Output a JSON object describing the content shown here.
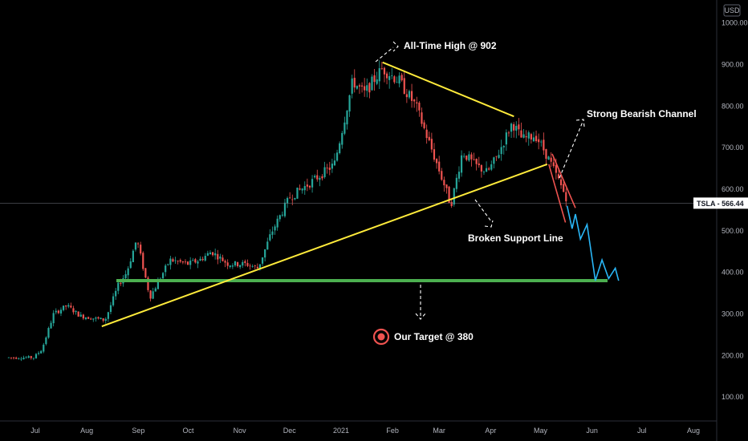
{
  "chart_data": {
    "type": "candlestick",
    "ticker": "TSLA",
    "currency_label": "USD",
    "last_price_label": "566.44",
    "last_price": 566.44,
    "y_ticks": [
      "100.00",
      "200.00",
      "300.00",
      "400.00",
      "500.00",
      "600.00",
      "700.00",
      "800.00",
      "900.00",
      "1000.00"
    ],
    "x_ticks": [
      "Jul",
      "Aug",
      "Sep",
      "Oct",
      "Nov",
      "Dec",
      "2021",
      "Feb",
      "Mar",
      "Apr",
      "May",
      "Jun",
      "Jul",
      "Aug"
    ],
    "colors": {
      "up": "#26a69a",
      "down": "#ef5350",
      "support": "#4caf50",
      "trend": "#ffeb3b",
      "channel": "#ef5350",
      "projection": "#29b6f6"
    },
    "price_path": [
      [
        "2020-06-15",
        195
      ],
      [
        "2020-06-30",
        195
      ],
      [
        "2020-07-05",
        215
      ],
      [
        "2020-07-12",
        300
      ],
      [
        "2020-07-20",
        320
      ],
      [
        "2020-07-28",
        295
      ],
      [
        "2020-08-12",
        285
      ],
      [
        "2020-08-20",
        370
      ],
      [
        "2020-08-25",
        400
      ],
      [
        "2020-08-31",
        480
      ],
      [
        "2020-09-08",
        340
      ],
      [
        "2020-09-20",
        430
      ],
      [
        "2020-10-01",
        420
      ],
      [
        "2020-10-08",
        430
      ],
      [
        "2020-10-15",
        450
      ],
      [
        "2020-10-25",
        420
      ],
      [
        "2020-11-05",
        420
      ],
      [
        "2020-11-12",
        410
      ],
      [
        "2020-11-20",
        495
      ],
      [
        "2020-12-01",
        580
      ],
      [
        "2020-12-15",
        620
      ],
      [
        "2020-12-28",
        660
      ],
      [
        "2021-01-08",
        860
      ],
      [
        "2021-01-15",
        830
      ],
      [
        "2021-01-22",
        870
      ],
      [
        "2021-01-26",
        890
      ],
      [
        "2021-02-05",
        860
      ],
      [
        "2021-02-15",
        800
      ],
      [
        "2021-02-25",
        690
      ],
      [
        "2021-03-05",
        600
      ],
      [
        "2021-03-08",
        560
      ],
      [
        "2021-03-15",
        690
      ],
      [
        "2021-03-22",
        660
      ],
      [
        "2021-03-30",
        640
      ],
      [
        "2021-04-05",
        680
      ],
      [
        "2021-04-14",
        760
      ],
      [
        "2021-04-20",
        720
      ],
      [
        "2021-04-28",
        730
      ],
      [
        "2021-05-05",
        680
      ],
      [
        "2021-05-12",
        620
      ],
      [
        "2021-05-17",
        575
      ]
    ],
    "lines": {
      "support_level": 380,
      "rising_trend": [
        [
          "2020-08-10",
          270
        ],
        [
          "2021-05-05",
          660
        ]
      ],
      "falling_trend": [
        [
          "2021-01-26",
          905
        ],
        [
          "2021-04-15",
          775
        ]
      ],
      "channel_upper": [
        [
          "2021-05-08",
          685
        ],
        [
          "2021-05-22",
          555
        ]
      ],
      "channel_lower": [
        [
          "2021-05-06",
          660
        ],
        [
          "2021-05-16",
          520
        ]
      ],
      "projection": [
        [
          "2021-05-17",
          560
        ],
        [
          "2021-05-20",
          505
        ],
        [
          "2021-05-22",
          540
        ],
        [
          "2021-05-25",
          480
        ],
        [
          "2021-05-29",
          515
        ],
        [
          "2021-06-03",
          380
        ],
        [
          "2021-06-07",
          430
        ],
        [
          "2021-06-11",
          385
        ],
        [
          "2021-06-15",
          410
        ],
        [
          "2021-06-17",
          380
        ]
      ]
    },
    "annotations": [
      {
        "text": "All-Time High @ 902"
      },
      {
        "text": "Strong Bearish Channel"
      },
      {
        "text": "Broken Support Line"
      },
      {
        "text": "Our Target @ 380"
      }
    ]
  }
}
